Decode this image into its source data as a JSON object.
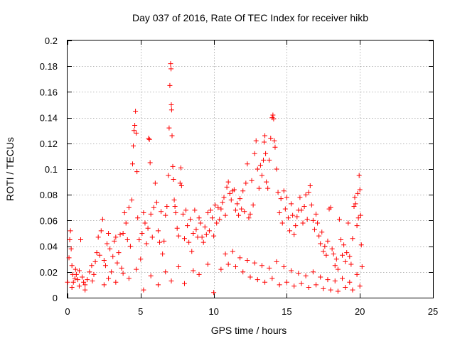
{
  "chart_data": {
    "type": "scatter",
    "title": "Day 037 of 2016, Rate Of TEC Index for receiver hikb",
    "xlabel": "GPS time / hours",
    "ylabel": "ROTI / TECUs",
    "xlim": [
      0,
      25
    ],
    "ylim": [
      0,
      0.2
    ],
    "x_ticks": [
      "0",
      "5",
      "10",
      "15",
      "20",
      "25"
    ],
    "y_ticks": [
      "0",
      "0.02",
      "0.04",
      "0.06",
      "0.08",
      "0.1",
      "0.12",
      "0.14",
      "0.16",
      "0.18",
      "0.2"
    ],
    "grid": true,
    "marker": "+",
    "color": "#ff0000",
    "series": [
      {
        "values": [
          [
            0.0,
            0.012
          ],
          [
            0.1,
            0.031
          ],
          [
            0.15,
            0.045
          ],
          [
            0.2,
            0.052
          ],
          [
            0.25,
            0.038
          ],
          [
            0.3,
            0.025
          ],
          [
            0.35,
            0.018
          ],
          [
            0.4,
            0.012
          ],
          [
            0.5,
            0.015
          ],
          [
            0.55,
            0.022
          ],
          [
            0.6,
            0.018
          ],
          [
            0.7,
            0.014
          ],
          [
            0.8,
            0.021
          ],
          [
            0.9,
            0.045
          ],
          [
            1.0,
            0.016
          ],
          [
            1.1,
            0.012
          ],
          [
            1.2,
            0.01
          ],
          [
            1.35,
            0.014
          ],
          [
            1.5,
            0.02
          ],
          [
            1.65,
            0.025
          ],
          [
            1.8,
            0.018
          ],
          [
            1.9,
            0.028
          ],
          [
            2.0,
            0.035
          ],
          [
            2.1,
            0.047
          ],
          [
            2.2,
            0.033
          ],
          [
            2.3,
            0.052
          ],
          [
            2.4,
            0.061
          ],
          [
            2.5,
            0.029
          ],
          [
            2.6,
            0.025
          ],
          [
            2.7,
            0.042
          ],
          [
            2.8,
            0.05
          ],
          [
            2.9,
            0.038
          ],
          [
            3.0,
            0.02
          ],
          [
            3.1,
            0.032
          ],
          [
            3.2,
            0.044
          ],
          [
            3.3,
            0.047
          ],
          [
            3.4,
            0.027
          ],
          [
            3.5,
            0.035
          ],
          [
            3.6,
            0.049
          ],
          [
            3.7,
            0.023
          ],
          [
            3.8,
            0.05
          ],
          [
            3.9,
            0.066
          ],
          [
            4.0,
            0.058
          ],
          [
            4.1,
            0.045
          ],
          [
            4.2,
            0.07
          ],
          [
            4.3,
            0.04
          ],
          [
            4.4,
            0.076
          ],
          [
            4.45,
            0.104
          ],
          [
            4.5,
            0.118
          ],
          [
            4.55,
            0.13
          ],
          [
            4.6,
            0.134
          ],
          [
            4.65,
            0.145
          ],
          [
            4.7,
            0.128
          ],
          [
            4.75,
            0.098
          ],
          [
            4.8,
            0.062
          ],
          [
            4.9,
            0.045
          ],
          [
            5.0,
            0.03
          ],
          [
            5.1,
            0.05
          ],
          [
            5.2,
            0.066
          ],
          [
            5.3,
            0.058
          ],
          [
            5.4,
            0.042
          ],
          [
            5.5,
            0.054
          ],
          [
            5.55,
            0.124
          ],
          [
            5.6,
            0.123
          ],
          [
            5.65,
            0.105
          ],
          [
            5.7,
            0.065
          ],
          [
            5.8,
            0.047
          ],
          [
            5.9,
            0.07
          ],
          [
            6.0,
            0.089
          ],
          [
            6.1,
            0.074
          ],
          [
            6.2,
            0.052
          ],
          [
            6.3,
            0.043
          ],
          [
            6.4,
            0.067
          ],
          [
            6.5,
            0.034
          ],
          [
            6.6,
            0.044
          ],
          [
            6.7,
            0.064
          ],
          [
            6.8,
            0.071
          ],
          [
            6.9,
            0.095
          ],
          [
            6.95,
            0.132
          ],
          [
            7.0,
            0.165
          ],
          [
            7.05,
            0.182
          ],
          [
            7.08,
            0.178
          ],
          [
            7.1,
            0.15
          ],
          [
            7.12,
            0.146
          ],
          [
            7.15,
            0.126
          ],
          [
            7.2,
            0.102
          ],
          [
            7.25,
            0.092
          ],
          [
            7.3,
            0.076
          ],
          [
            7.35,
            0.071
          ],
          [
            7.4,
            0.066
          ],
          [
            7.5,
            0.054
          ],
          [
            7.6,
            0.048
          ],
          [
            7.7,
            0.089
          ],
          [
            7.75,
            0.101
          ],
          [
            7.8,
            0.087
          ],
          [
            7.9,
            0.065
          ],
          [
            8.0,
            0.046
          ],
          [
            8.1,
            0.068
          ],
          [
            8.2,
            0.056
          ],
          [
            8.3,
            0.043
          ],
          [
            8.4,
            0.061
          ],
          [
            8.5,
            0.036
          ],
          [
            8.6,
            0.05
          ],
          [
            8.7,
            0.068
          ],
          [
            8.8,
            0.053
          ],
          [
            8.9,
            0.047
          ],
          [
            9.0,
            0.062
          ],
          [
            9.1,
            0.058
          ],
          [
            9.2,
            0.047
          ],
          [
            9.3,
            0.043
          ],
          [
            9.4,
            0.055
          ],
          [
            9.5,
            0.049
          ],
          [
            9.6,
            0.066
          ],
          [
            9.7,
            0.052
          ],
          [
            9.8,
            0.068
          ],
          [
            9.9,
            0.062
          ],
          [
            10.0,
            0.048
          ],
          [
            10.1,
            0.072
          ],
          [
            10.2,
            0.058
          ],
          [
            10.3,
            0.07
          ],
          [
            10.4,
            0.061
          ],
          [
            10.5,
            0.069
          ],
          [
            10.6,
            0.074
          ],
          [
            10.7,
            0.078
          ],
          [
            10.8,
            0.064
          ],
          [
            10.9,
            0.086
          ],
          [
            11.0,
            0.09
          ],
          [
            11.1,
            0.081
          ],
          [
            11.2,
            0.076
          ],
          [
            11.3,
            0.083
          ],
          [
            11.4,
            0.084
          ],
          [
            11.5,
            0.068
          ],
          [
            11.6,
            0.073
          ],
          [
            11.7,
            0.064
          ],
          [
            11.8,
            0.077
          ],
          [
            11.9,
            0.069
          ],
          [
            12.0,
            0.083
          ],
          [
            12.1,
            0.067
          ],
          [
            12.2,
            0.089
          ],
          [
            12.3,
            0.104
          ],
          [
            12.4,
            0.062
          ],
          [
            12.5,
            0.065
          ],
          [
            12.6,
            0.091
          ],
          [
            12.7,
            0.072
          ],
          [
            12.8,
            0.112
          ],
          [
            12.9,
            0.122
          ],
          [
            13.0,
            0.1
          ],
          [
            13.1,
            0.085
          ],
          [
            13.2,
            0.103
          ],
          [
            13.3,
            0.095
          ],
          [
            13.4,
            0.107
          ],
          [
            13.45,
            0.121
          ],
          [
            13.5,
            0.126
          ],
          [
            13.55,
            0.112
          ],
          [
            13.6,
            0.09
          ],
          [
            13.7,
            0.085
          ],
          [
            13.8,
            0.107
          ],
          [
            13.9,
            0.124
          ],
          [
            14.0,
            0.14
          ],
          [
            14.05,
            0.142
          ],
          [
            14.1,
            0.139
          ],
          [
            14.15,
            0.122
          ],
          [
            14.2,
            0.117
          ],
          [
            14.3,
            0.1
          ],
          [
            14.4,
            0.082
          ],
          [
            14.5,
            0.066
          ],
          [
            14.6,
            0.077
          ],
          [
            14.7,
            0.058
          ],
          [
            14.8,
            0.083
          ],
          [
            14.9,
            0.069
          ],
          [
            15.0,
            0.078
          ],
          [
            15.1,
            0.062
          ],
          [
            15.2,
            0.052
          ],
          [
            15.3,
            0.073
          ],
          [
            15.4,
            0.064
          ],
          [
            15.5,
            0.049
          ],
          [
            15.6,
            0.056
          ],
          [
            15.7,
            0.063
          ],
          [
            15.8,
            0.068
          ],
          [
            15.9,
            0.078
          ],
          [
            16.0,
            0.068
          ],
          [
            16.1,
            0.058
          ],
          [
            16.2,
            0.071
          ],
          [
            16.3,
            0.08
          ],
          [
            16.4,
            0.061
          ],
          [
            16.5,
            0.082
          ],
          [
            16.6,
            0.087
          ],
          [
            16.7,
            0.072
          ],
          [
            16.8,
            0.06
          ],
          [
            16.9,
            0.053
          ],
          [
            17.0,
            0.065
          ],
          [
            17.1,
            0.058
          ],
          [
            17.2,
            0.048
          ],
          [
            17.3,
            0.042
          ],
          [
            17.4,
            0.051
          ],
          [
            17.5,
            0.036
          ],
          [
            17.6,
            0.04
          ],
          [
            17.7,
            0.033
          ],
          [
            17.8,
            0.044
          ],
          [
            17.9,
            0.069
          ],
          [
            18.0,
            0.07
          ],
          [
            18.1,
            0.038
          ],
          [
            18.2,
            0.034
          ],
          [
            18.3,
            0.025
          ],
          [
            18.4,
            0.03
          ],
          [
            18.5,
            0.022
          ],
          [
            18.6,
            0.061
          ],
          [
            18.7,
            0.045
          ],
          [
            18.8,
            0.033
          ],
          [
            18.9,
            0.041
          ],
          [
            19.0,
            0.028
          ],
          [
            19.1,
            0.035
          ],
          [
            19.2,
            0.058
          ],
          [
            19.3,
            0.032
          ],
          [
            19.4,
            0.026
          ],
          [
            19.5,
            0.046
          ],
          [
            19.6,
            0.071
          ],
          [
            19.65,
            0.078
          ],
          [
            19.7,
            0.073
          ],
          [
            19.8,
            0.056
          ],
          [
            19.85,
            0.081
          ],
          [
            19.9,
            0.062
          ],
          [
            19.95,
            0.095
          ],
          [
            20.0,
            0.084
          ],
          [
            20.05,
            0.064
          ],
          [
            20.1,
            0.041
          ],
          [
            20.15,
            0.024
          ],
          [
            0.3,
            0.008
          ],
          [
            1.2,
            0.006
          ],
          [
            2.5,
            0.01
          ],
          [
            3.3,
            0.012
          ],
          [
            4.2,
            0.015
          ],
          [
            5.2,
            0.006
          ],
          [
            6.2,
            0.01
          ],
          [
            7.1,
            0.013
          ],
          [
            8.0,
            0.011
          ],
          [
            9.0,
            0.018
          ],
          [
            10.0,
            0.004
          ],
          [
            10.5,
            0.022
          ],
          [
            11.0,
            0.026
          ],
          [
            11.5,
            0.024
          ],
          [
            12.0,
            0.02
          ],
          [
            12.5,
            0.016
          ],
          [
            13.0,
            0.014
          ],
          [
            13.5,
            0.012
          ],
          [
            14.0,
            0.015
          ],
          [
            14.5,
            0.01
          ],
          [
            15.0,
            0.012
          ],
          [
            15.5,
            0.009
          ],
          [
            16.0,
            0.011
          ],
          [
            16.5,
            0.008
          ],
          [
            17.0,
            0.01
          ],
          [
            17.5,
            0.007
          ],
          [
            18.0,
            0.006
          ],
          [
            18.5,
            0.005
          ],
          [
            19.0,
            0.008
          ],
          [
            19.5,
            0.006
          ],
          [
            20.0,
            0.009
          ],
          [
            0.8,
            0.009
          ],
          [
            1.7,
            0.013
          ],
          [
            2.8,
            0.015
          ],
          [
            3.8,
            0.019
          ],
          [
            4.7,
            0.022
          ],
          [
            5.7,
            0.017
          ],
          [
            6.7,
            0.02
          ],
          [
            7.6,
            0.024
          ],
          [
            8.6,
            0.021
          ],
          [
            9.6,
            0.026
          ],
          [
            10.8,
            0.034
          ],
          [
            11.3,
            0.036
          ],
          [
            11.8,
            0.031
          ],
          [
            12.3,
            0.029
          ],
          [
            12.8,
            0.027
          ],
          [
            13.3,
            0.025
          ],
          [
            13.8,
            0.023
          ],
          [
            14.3,
            0.028
          ],
          [
            14.8,
            0.024
          ],
          [
            15.3,
            0.021
          ],
          [
            15.8,
            0.019
          ],
          [
            16.3,
            0.017
          ],
          [
            16.8,
            0.02
          ],
          [
            17.3,
            0.016
          ],
          [
            17.8,
            0.014
          ],
          [
            18.3,
            0.013
          ],
          [
            18.8,
            0.015
          ],
          [
            19.3,
            0.012
          ],
          [
            19.8,
            0.018
          ]
        ]
      }
    ]
  }
}
